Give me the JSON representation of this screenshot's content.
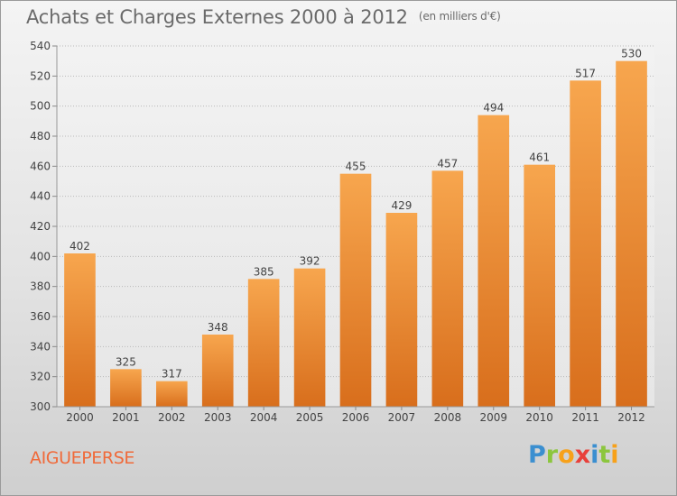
{
  "title": "Achats et Charges Externes 2000 à 2012",
  "subtitle": "(en milliers d'€)",
  "place": "AIGUEPERSE",
  "logo": {
    "text": "Proxiti",
    "letters": [
      {
        "ch": "P",
        "color": "#3b8fd0"
      },
      {
        "ch": "r",
        "color": "#8cc63e"
      },
      {
        "ch": "o",
        "color": "#f7a11a"
      },
      {
        "ch": "x",
        "color": "#e8403a"
      },
      {
        "ch": "i",
        "color": "#3b8fd0"
      },
      {
        "ch": "t",
        "color": "#8cc63e"
      },
      {
        "ch": "i",
        "color": "#f7a11a"
      }
    ]
  },
  "colors": {
    "bar_top": "#f7a64e",
    "bar_bottom": "#d86e1c",
    "title": "#6a6a6a",
    "place": "#f06a3a"
  },
  "chart_data": {
    "type": "bar",
    "categories": [
      "2000",
      "2001",
      "2002",
      "2003",
      "2004",
      "2005",
      "2006",
      "2007",
      "2008",
      "2009",
      "2010",
      "2011",
      "2012"
    ],
    "values": [
      402,
      325,
      317,
      348,
      385,
      392,
      455,
      429,
      457,
      494,
      461,
      517,
      530
    ],
    "ylim": [
      300,
      540
    ],
    "yticks": [
      300,
      320,
      340,
      360,
      380,
      400,
      420,
      440,
      460,
      480,
      500,
      520,
      540
    ],
    "grid": "horizontal dotted"
  }
}
